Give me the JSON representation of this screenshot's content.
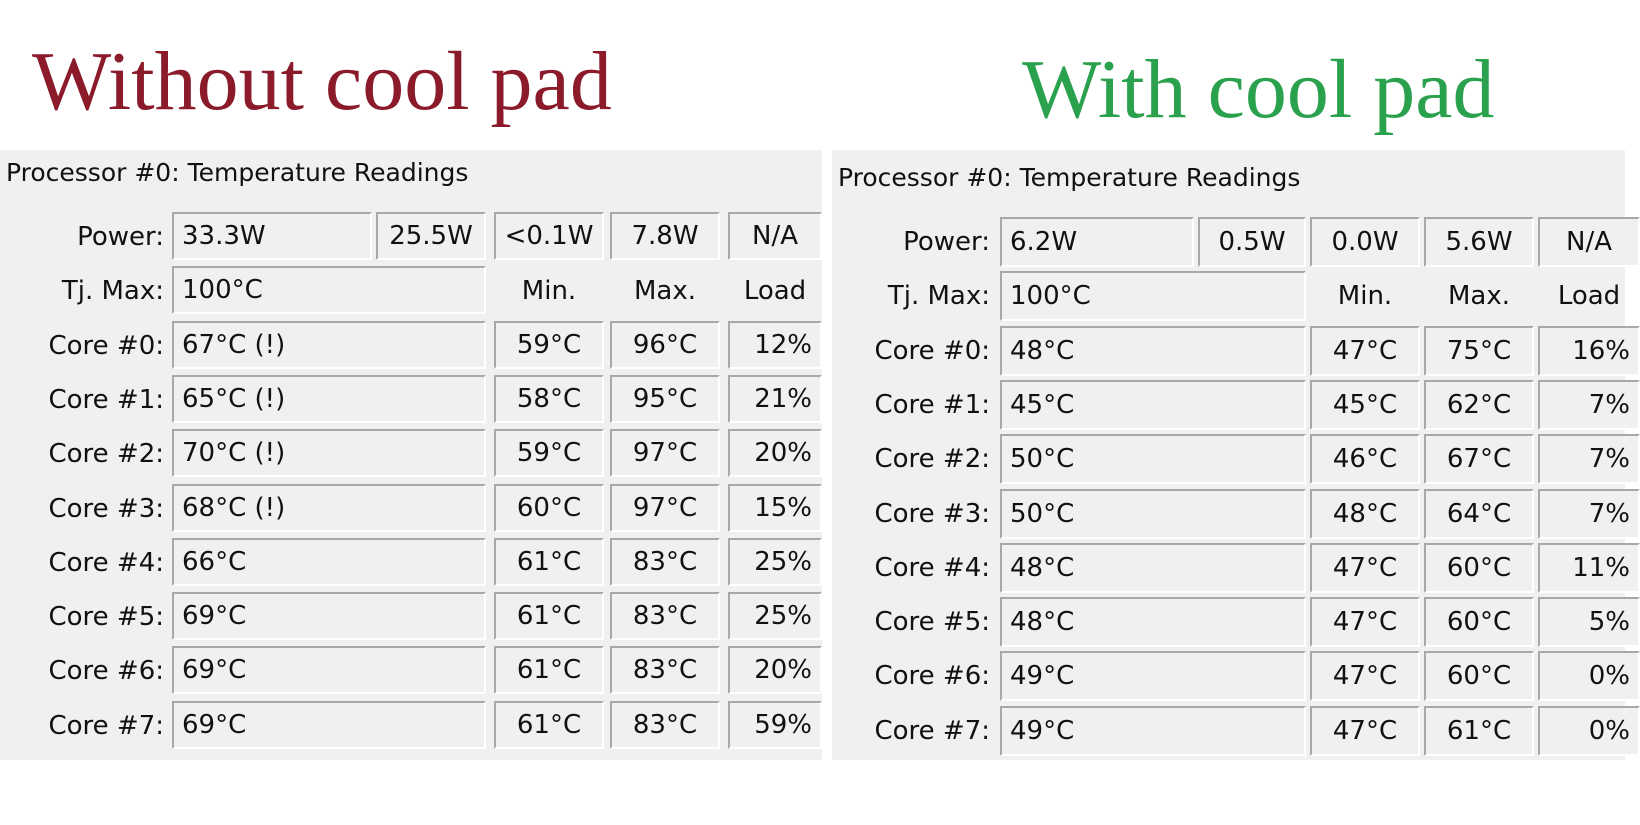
{
  "panels": [
    {
      "heading": "Without cool pad",
      "title": "Processor #0: Temperature Readings",
      "power_label": "Power:",
      "power": [
        "33.3W",
        "25.5W",
        "<0.1W",
        "7.8W",
        "N/A"
      ],
      "tj_label": "Tj. Max:",
      "tj_value": "100°C",
      "headers": [
        "Min.",
        "Max.",
        "Load"
      ],
      "cores": [
        {
          "label": "Core #0:",
          "temp": "67°C (!)",
          "min": "59°C",
          "max": "96°C",
          "load": "12%"
        },
        {
          "label": "Core #1:",
          "temp": "65°C (!)",
          "min": "58°C",
          "max": "95°C",
          "load": "21%"
        },
        {
          "label": "Core #2:",
          "temp": "70°C (!)",
          "min": "59°C",
          "max": "97°C",
          "load": "20%"
        },
        {
          "label": "Core #3:",
          "temp": "68°C (!)",
          "min": "60°C",
          "max": "97°C",
          "load": "15%"
        },
        {
          "label": "Core #4:",
          "temp": "66°C",
          "min": "61°C",
          "max": "83°C",
          "load": "25%"
        },
        {
          "label": "Core #5:",
          "temp": "69°C",
          "min": "61°C",
          "max": "83°C",
          "load": "25%"
        },
        {
          "label": "Core #6:",
          "temp": "69°C",
          "min": "61°C",
          "max": "83°C",
          "load": "20%"
        },
        {
          "label": "Core #7:",
          "temp": "69°C",
          "min": "61°C",
          "max": "83°C",
          "load": "59%"
        }
      ]
    },
    {
      "heading": "With cool pad",
      "title": "Processor #0: Temperature Readings",
      "power_label": "Power:",
      "power": [
        "6.2W",
        "0.5W",
        "0.0W",
        "5.6W",
        "N/A"
      ],
      "tj_label": "Tj. Max:",
      "tj_value": "100°C",
      "headers": [
        "Min.",
        "Max.",
        "Load"
      ],
      "cores": [
        {
          "label": "Core #0:",
          "temp": "48°C",
          "min": "47°C",
          "max": "75°C",
          "load": "16%"
        },
        {
          "label": "Core #1:",
          "temp": "45°C",
          "min": "45°C",
          "max": "62°C",
          "load": "7%"
        },
        {
          "label": "Core #2:",
          "temp": "50°C",
          "min": "46°C",
          "max": "67°C",
          "load": "7%"
        },
        {
          "label": "Core #3:",
          "temp": "50°C",
          "min": "48°C",
          "max": "64°C",
          "load": "7%"
        },
        {
          "label": "Core #4:",
          "temp": "48°C",
          "min": "47°C",
          "max": "60°C",
          "load": "11%"
        },
        {
          "label": "Core #5:",
          "temp": "48°C",
          "min": "47°C",
          "max": "60°C",
          "load": "5%"
        },
        {
          "label": "Core #6:",
          "temp": "49°C",
          "min": "47°C",
          "max": "60°C",
          "load": "0%"
        },
        {
          "label": "Core #7:",
          "temp": "49°C",
          "min": "47°C",
          "max": "61°C",
          "load": "0%"
        }
      ]
    }
  ]
}
